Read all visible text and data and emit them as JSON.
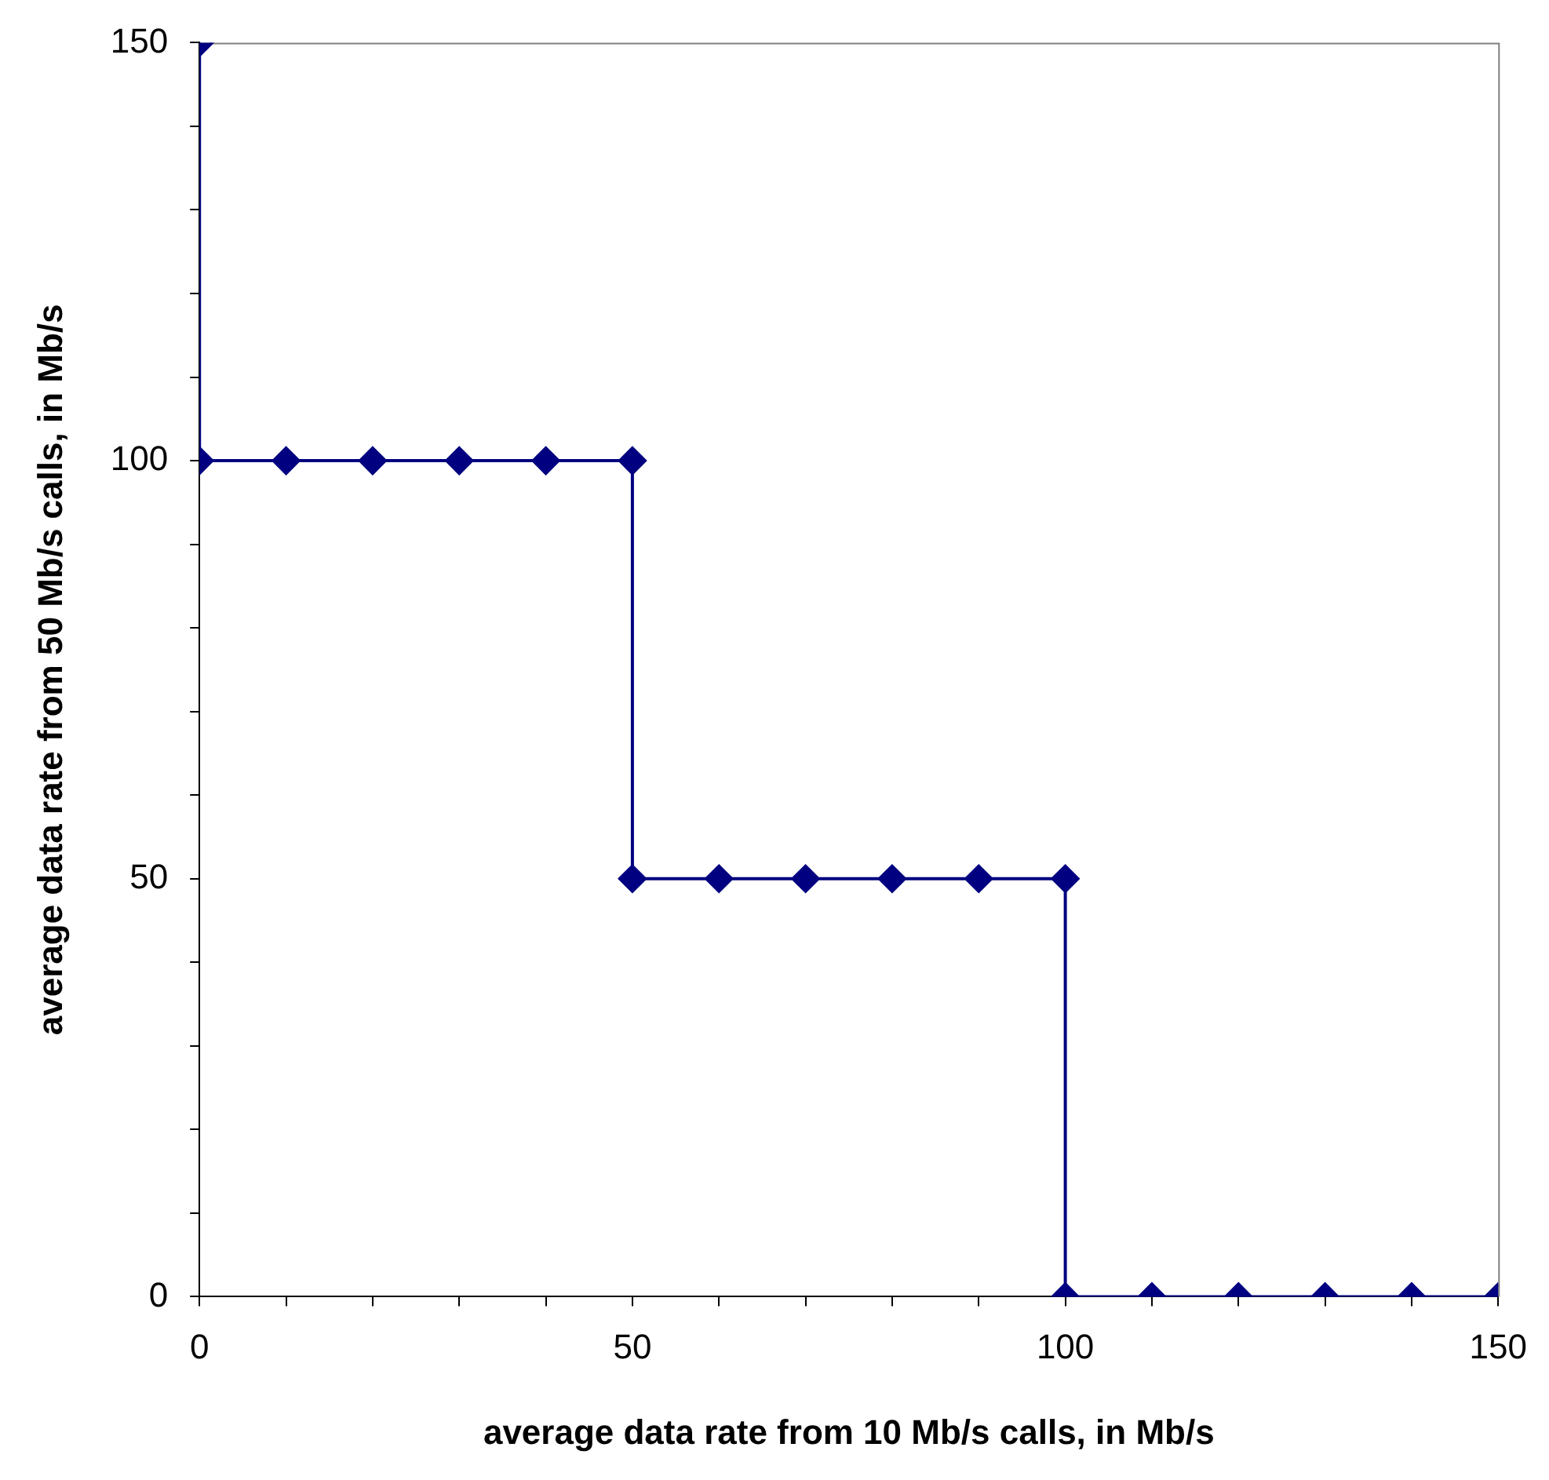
{
  "chart_data": {
    "type": "line",
    "xlabel": "average data rate from 10 Mb/s calls, in Mb/s",
    "ylabel": "average data rate from 50 Mb/s calls, in Mb/s",
    "x": [
      0,
      0,
      10,
      20,
      30,
      40,
      50,
      50,
      60,
      70,
      80,
      90,
      100,
      100,
      110,
      120,
      130,
      140,
      150
    ],
    "series": [
      {
        "color": "#000080",
        "values": [
          150,
          100,
          100,
          100,
          100,
          100,
          100,
          50,
          50,
          50,
          50,
          50,
          50,
          0,
          0,
          0,
          0,
          0,
          0
        ]
      }
    ],
    "xlim": [
      0,
      150
    ],
    "ylim": [
      0,
      150
    ],
    "xticks": [
      0,
      {
        "value": 10,
        "label": null
      },
      {
        "value": 20,
        "label": null
      },
      {
        "value": 30,
        "label": null
      },
      {
        "value": 40,
        "label": null
      },
      50,
      {
        "value": 60,
        "label": null
      },
      {
        "value": 70,
        "label": null
      },
      {
        "value": 80,
        "label": null
      },
      {
        "value": 90,
        "label": null
      },
      100,
      {
        "value": 110,
        "label": null
      },
      {
        "value": 120,
        "label": null
      },
      {
        "value": 130,
        "label": null
      },
      {
        "value": 140,
        "label": null
      },
      150
    ],
    "yticks": [
      0,
      {
        "value": 10,
        "label": null
      },
      {
        "value": 20,
        "label": null
      },
      {
        "value": 30,
        "label": null
      },
      {
        "value": 40,
        "label": null
      },
      50,
      {
        "value": 60,
        "label": null
      },
      {
        "value": 70,
        "label": null
      },
      {
        "value": 80,
        "label": null
      },
      {
        "value": 90,
        "label": null
      },
      100,
      {
        "value": 110,
        "label": null
      },
      {
        "value": 120,
        "label": null
      },
      {
        "value": 130,
        "label": null
      },
      {
        "value": 140,
        "label": null
      },
      150
    ],
    "grid": false,
    "legend": false,
    "marker": "diamond",
    "line_style": "solid"
  }
}
